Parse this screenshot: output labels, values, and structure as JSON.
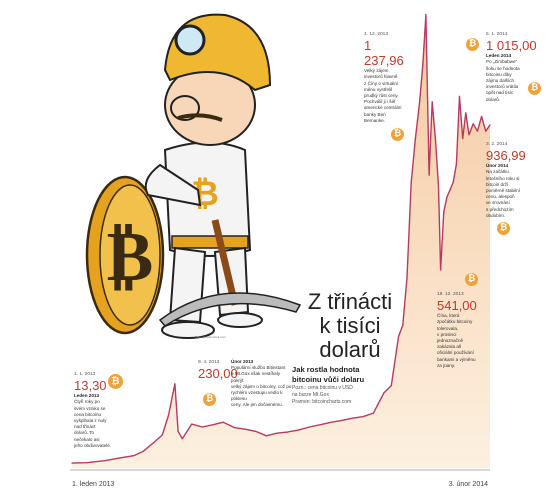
{
  "headline": [
    "Z třinácti",
    "k tisíci",
    "dolarů"
  ],
  "subhead": [
    "Jak rostla hodnota",
    "bitcoinu vůči dolaru"
  ],
  "source": [
    "Pozn.: cena bitcoinu v USD",
    "na burze Mt.Gox",
    "Pramen: bitcoincharts.com"
  ],
  "photo_credit": "Foto: Shutterstock.com",
  "axis": {
    "start": "1. leden 2013",
    "end": "3. únor 2014"
  },
  "annotations": [
    {
      "date": "1. 1. 2013",
      "value": "13,30",
      "lines": [
        "Leden 2013",
        "Čtyři roky po",
        "svém vzniku se",
        "cena bitcoinu",
        "vyšplhala z nuly",
        "nad třináct",
        "dolarů. To",
        "nečekalo asi",
        "jeho obdivovatelé."
      ]
    },
    {
      "date": "9. 4. 2013",
      "value": "230,00",
      "lines": [
        "Únor 2013",
        "Populární službu Bitinstant",
        "a Mt.Gox však nestíhaly pokrýt",
        "velký zájem o bitcoiny, což po",
        "rychlém vzestupu vedlo k poklesu",
        "ceny. Ale jen dočasnému."
      ]
    },
    {
      "date": "4. 12. 2013",
      "value": "1 237,96",
      "lines": [
        "Velký zájem",
        "investorů hlavně",
        "z Číny o virtuální",
        "měnu vystřelil",
        "prudký růst ceny.",
        "Pochválil ji i šéf",
        "americké centrální",
        "banky Ben",
        "Bernanke."
      ]
    },
    {
      "date": "5. 1. 2014",
      "value": "1 015,00",
      "lines": [
        "Leden 2014",
        "Po „Zimbabwe“",
        "šoku se hodnota",
        "bitcoinu díky",
        "zájmu dalších",
        "investorů vrátila",
        "opět nad tisíc",
        "dolarů."
      ]
    },
    {
      "date": "3. 2. 2014",
      "value": "936,99",
      "lines": [
        "Únor 2014",
        "Na začátku",
        "letošního roku si",
        "bitcoin drží",
        "poměrně stabilní",
        "cenu, alespoň",
        "ve srovnání",
        "s předchozím",
        "obdobím."
      ]
    },
    {
      "date": "18. 12. 2013",
      "value": "541,00",
      "lines": [
        "Čína, která",
        "zpočátku bitcoiny",
        "tolerovala,",
        "v prosinci",
        "jednoznačně",
        "zakázala all",
        "oficiální používání",
        "bankami a výměnu",
        "za jüany."
      ]
    }
  ],
  "chart_data": {
    "type": "area",
    "title": "Z třinácti k tisíci dolarů",
    "xlabel": "",
    "ylabel": "",
    "x_start": "2013-01-01",
    "x_end": "2014-02-03",
    "ylim": [
      0,
      1240
    ],
    "color": "#b83a5e",
    "fill_top": "#f5c9a0",
    "fill_bottom": "#fdf0e0",
    "series": [
      {
        "x": [
          "2013-01-01",
          "2013-01-15",
          "2013-02-01",
          "2013-02-15",
          "2013-03-01",
          "2013-03-10",
          "2013-03-20",
          "2013-03-28",
          "2013-04-03",
          "2013-04-09",
          "2013-04-12",
          "2013-04-16",
          "2013-04-25",
          "2013-05-05",
          "2013-05-15",
          "2013-05-25",
          "2013-06-05",
          "2013-06-15",
          "2013-06-25",
          "2013-07-05",
          "2013-07-15",
          "2013-07-25",
          "2013-08-05",
          "2013-08-15",
          "2013-08-25",
          "2013-09-05",
          "2013-09-15",
          "2013-09-25",
          "2013-10-05",
          "2013-10-15",
          "2013-10-25",
          "2013-11-01",
          "2013-11-08",
          "2013-11-12",
          "2013-11-16",
          "2013-11-20",
          "2013-11-24",
          "2013-11-28",
          "2013-12-01",
          "2013-12-04",
          "2013-12-07",
          "2013-12-10",
          "2013-12-13",
          "2013-12-16",
          "2013-12-18",
          "2013-12-21",
          "2013-12-24",
          "2013-12-27",
          "2013-12-30",
          "2014-01-02",
          "2014-01-05",
          "2014-01-08",
          "2014-01-11",
          "2014-01-14",
          "2014-01-18",
          "2014-01-22",
          "2014-01-26",
          "2014-01-30",
          "2014-02-03"
        ],
        "y": [
          13.3,
          14.5,
          20,
          27,
          34,
          46,
          70,
          90,
          145,
          230,
          100,
          80,
          120,
          112,
          118,
          125,
          110,
          106,
          100,
          88,
          95,
          98,
          104,
          112,
          118,
          125,
          130,
          136,
          140,
          150,
          205,
          225,
          360,
          390,
          520,
          780,
          900,
          1000,
          1100,
          1237.96,
          800,
          1000,
          900,
          770,
          541,
          700,
          740,
          760,
          780,
          830,
          1015,
          900,
          970,
          910,
          940,
          920,
          960,
          920,
          936.99
        ]
      }
    ]
  }
}
